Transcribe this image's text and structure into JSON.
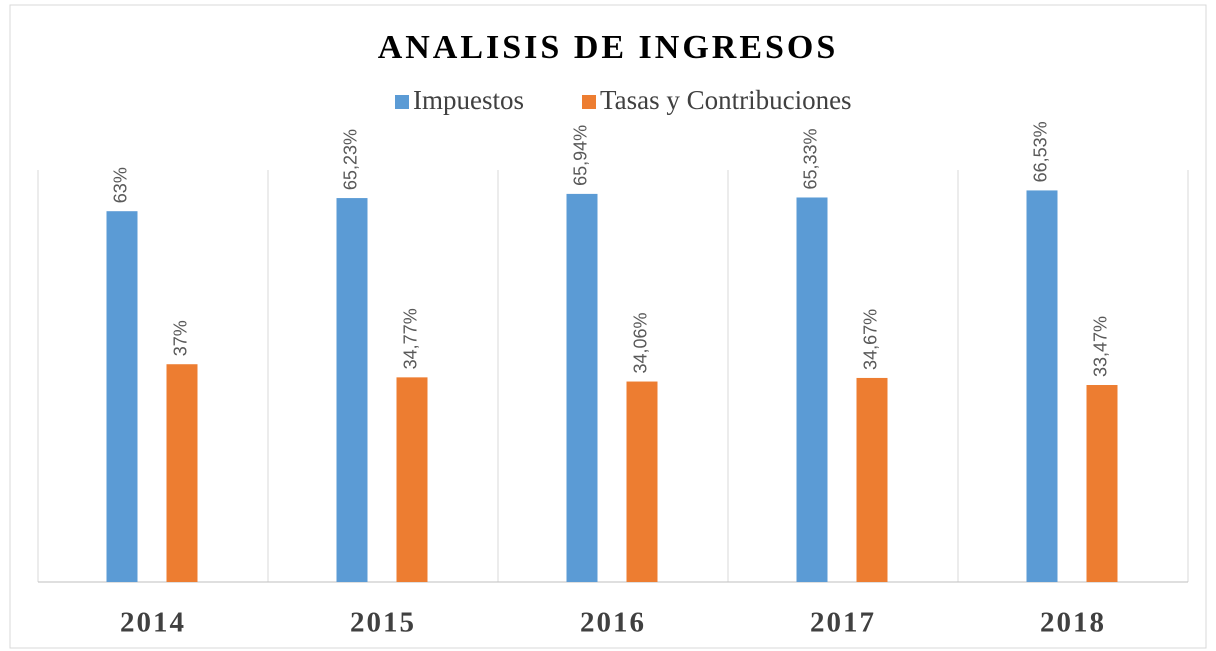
{
  "chart_data": {
    "type": "bar",
    "title": "ANALISIS DE INGRESOS",
    "categories": [
      "2014",
      "2015",
      "2016",
      "2017",
      "2018"
    ],
    "series": [
      {
        "name": "Impuestos",
        "color": "#5b9bd5",
        "values": [
          63,
          65.23,
          65.94,
          65.33,
          66.53
        ],
        "value_labels": [
          "63%",
          "65,23%",
          "65,94%",
          "65,33%",
          "66,53%"
        ]
      },
      {
        "name": "Tasas y Contribuciones",
        "color": "#ed7d31",
        "values": [
          37,
          34.77,
          34.06,
          34.67,
          33.47
        ],
        "value_labels": [
          "37%",
          "34,77%",
          "34,06%",
          "34,67%",
          "33,47%"
        ]
      }
    ],
    "ylim": [
      0,
      70
    ],
    "legend": "top"
  }
}
